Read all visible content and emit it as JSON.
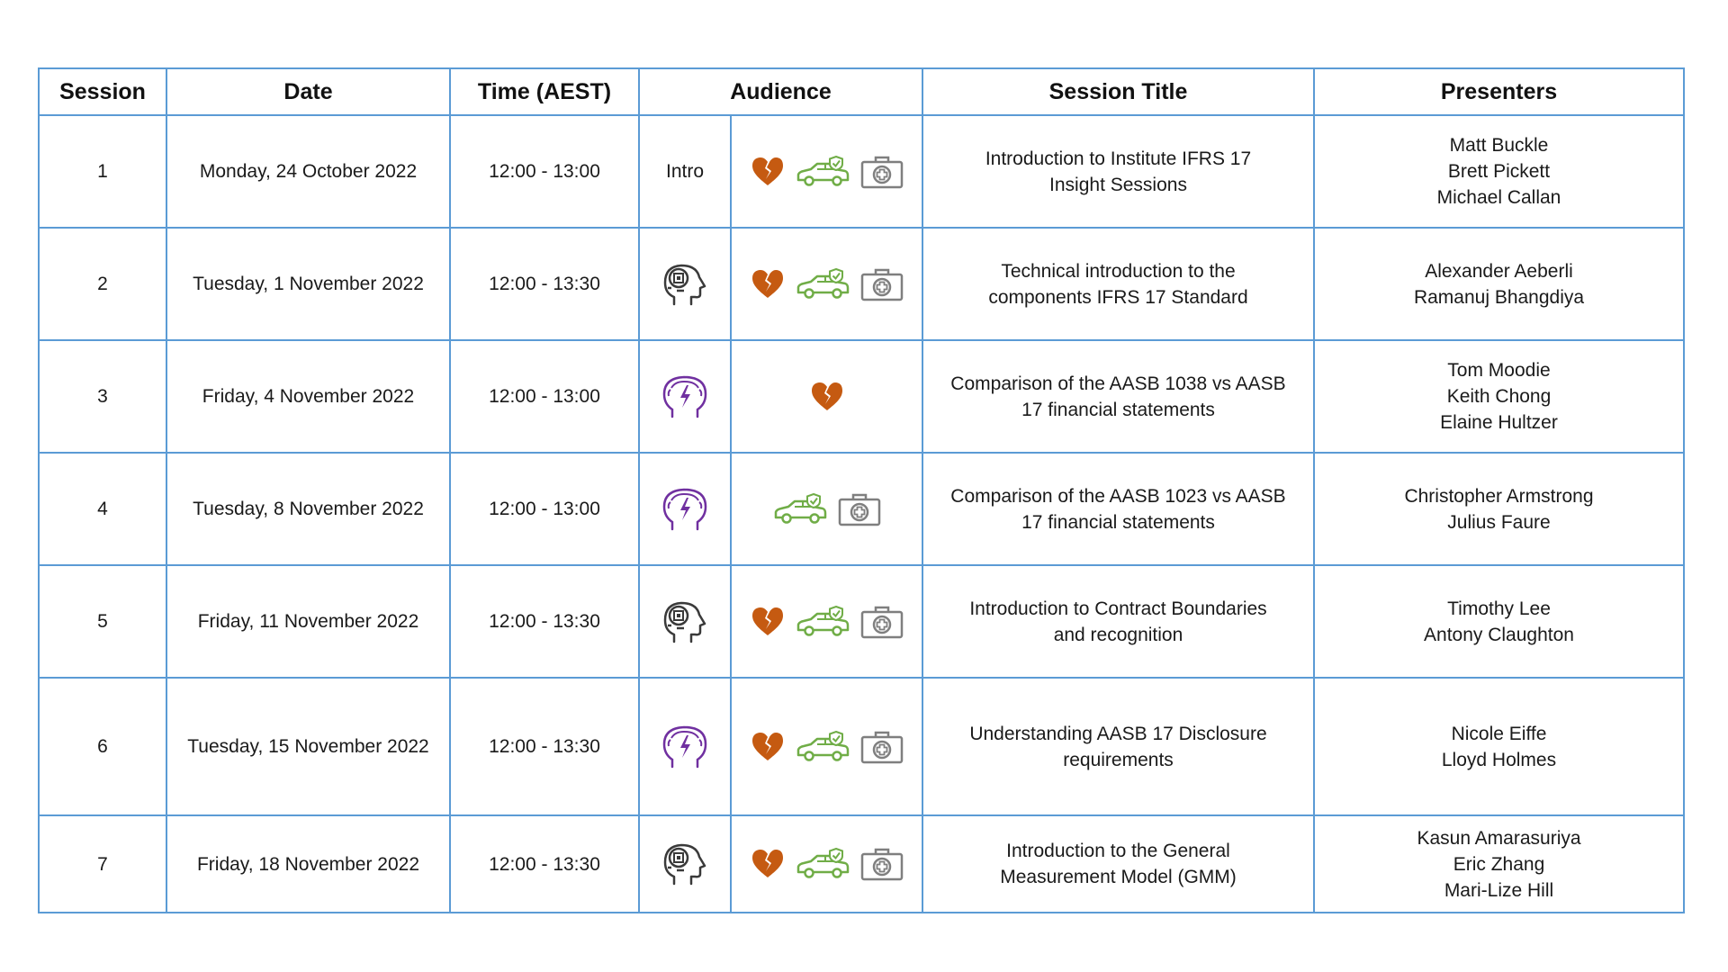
{
  "headers": {
    "session": "Session",
    "date": "Date",
    "time": "Time (AEST)",
    "audience": "Audience",
    "title": "Session Title",
    "presenters": "Presenters"
  },
  "colors": {
    "border": "#5b9bd5",
    "heart": "#c55a11",
    "car": "#70ad47",
    "kit": "#7f7f7f",
    "head_dark": "#3a3a3a",
    "head_purple": "#7030a0"
  },
  "rows": [
    {
      "session": "1",
      "date": "Monday, 24 October 2022",
      "time": "12:00 - 13:00",
      "level": "intro",
      "level_text": "Intro",
      "audience": [
        "heart",
        "car",
        "medkit"
      ],
      "title": [
        "Introduction to Institute IFRS 17",
        "Insight Sessions"
      ],
      "presenters": [
        "Matt Buckle",
        "Brett Pickett",
        "Michael Callan"
      ]
    },
    {
      "session": "2",
      "date": "Tuesday, 1 November 2022",
      "time": "12:00 - 13:30",
      "level": "brain-chip",
      "audience": [
        "heart",
        "car",
        "medkit"
      ],
      "title": [
        "Technical introduction to the",
        "components IFRS 17 Standard"
      ],
      "presenters": [
        "Alexander Aeberli",
        "Ramanuj Bhangdiya"
      ]
    },
    {
      "session": "3",
      "date": "Friday, 4 November 2022",
      "time": "12:00 - 13:00",
      "level": "brain-bolt",
      "audience": [
        "heart"
      ],
      "title": [
        "Comparison of the AASB 1038 vs AASB",
        "17 financial statements"
      ],
      "presenters": [
        "Tom Moodie",
        "Keith Chong",
        "Elaine Hultzer"
      ]
    },
    {
      "session": "4",
      "date": "Tuesday, 8 November 2022",
      "time": "12:00 - 13:00",
      "level": "brain-bolt",
      "audience": [
        "car",
        "medkit"
      ],
      "title": [
        "Comparison of the AASB 1023 vs AASB",
        "17 financial statements"
      ],
      "presenters": [
        "Christopher Armstrong",
        "Julius Faure"
      ]
    },
    {
      "session": "5",
      "date": "Friday, 11 November 2022",
      "time": "12:00 - 13:30",
      "level": "brain-chip",
      "audience": [
        "heart",
        "car",
        "medkit"
      ],
      "title": [
        "Introduction to Contract Boundaries",
        "and recognition"
      ],
      "presenters": [
        "Timothy Lee",
        "Antony Claughton"
      ]
    },
    {
      "session": "6",
      "date": "Tuesday, 15 November 2022",
      "time": "12:00 - 13:30",
      "level": "brain-bolt",
      "audience": [
        "heart",
        "car",
        "medkit"
      ],
      "title": [
        "Understanding AASB 17 Disclosure",
        "requirements"
      ],
      "presenters": [
        "Nicole Eiffe",
        "Lloyd Holmes"
      ]
    },
    {
      "session": "7",
      "date": "Friday, 18 November 2022",
      "time": "12:00 - 13:30",
      "level": "brain-chip",
      "audience": [
        "heart",
        "car",
        "medkit"
      ],
      "title": [
        "Introduction to the General",
        "Measurement Model (GMM)"
      ],
      "presenters": [
        "Kasun Amarasuriya",
        "Eric Zhang",
        "Mari-Lize Hill"
      ]
    }
  ]
}
